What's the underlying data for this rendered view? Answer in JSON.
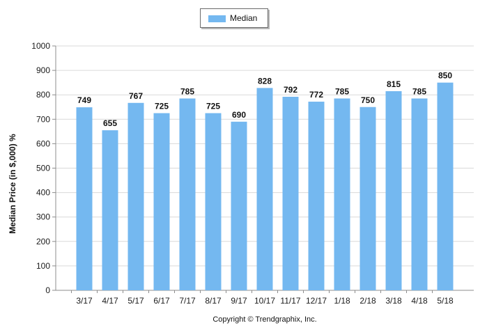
{
  "chart_data": {
    "type": "bar",
    "categories": [
      "3/17",
      "4/17",
      "5/17",
      "6/17",
      "7/17",
      "8/17",
      "9/17",
      "10/17",
      "11/17",
      "12/17",
      "1/18",
      "2/18",
      "3/18",
      "4/18",
      "5/18"
    ],
    "series": [
      {
        "name": "Median",
        "values": [
          749,
          655,
          767,
          725,
          785,
          725,
          690,
          828,
          792,
          772,
          785,
          750,
          815,
          785,
          850
        ]
      }
    ],
    "ylabel": "Median Price (in $,000) %",
    "xlabel": "",
    "ylim": [
      0,
      1000
    ],
    "yticks": [
      0,
      100,
      200,
      300,
      400,
      500,
      600,
      700,
      800,
      900,
      1000
    ],
    "grid": true,
    "legend": "top-center",
    "bar_color": "#74b8f0"
  },
  "footer": {
    "copyright": "Copyright © Trendgraphix, Inc."
  }
}
